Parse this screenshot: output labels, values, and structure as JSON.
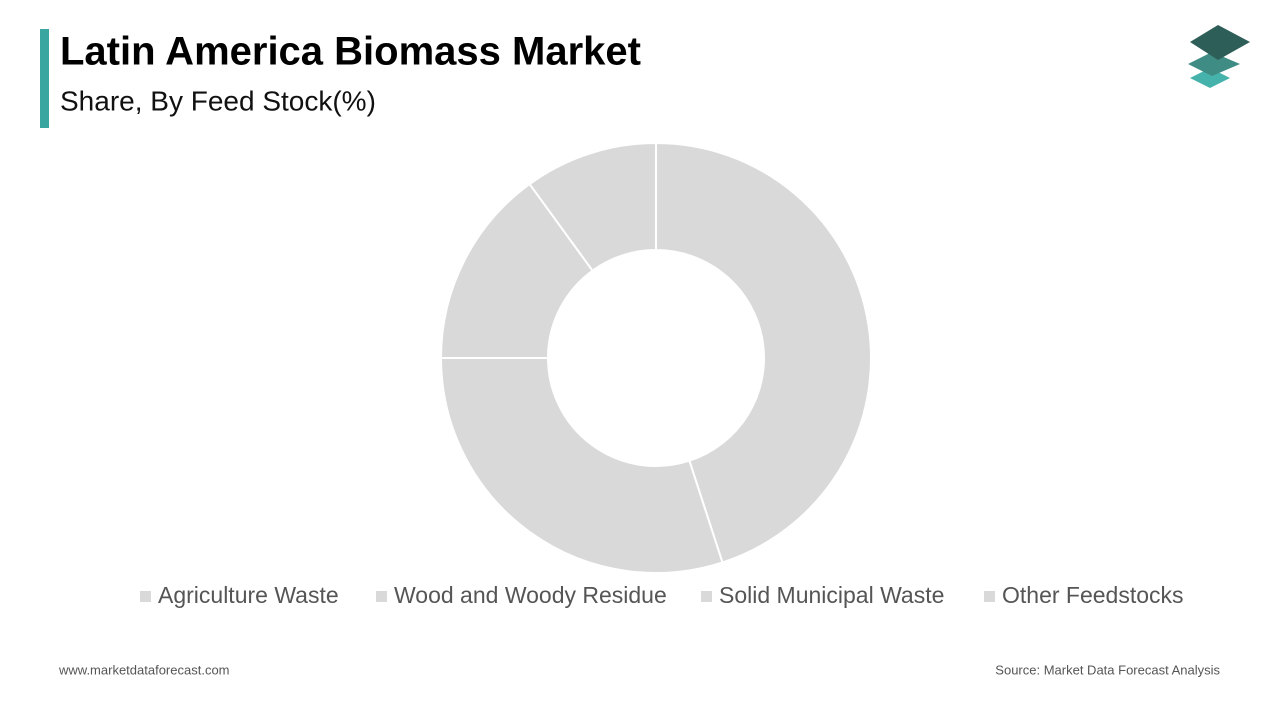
{
  "chart_data": {
    "type": "donut",
    "title": "Latin America Biomass Market",
    "subtitle": "Share, By Feed Stock(%)",
    "categories": [
      "Agriculture Waste",
      "Wood and Woody Residue",
      "Solid Municipal Waste",
      "Other Feedstocks"
    ],
    "values": [
      45,
      30,
      15,
      10
    ],
    "color": "#d9d9d9"
  },
  "footer": {
    "website": "www.marketdataforecast.com",
    "source": "Source: Market Data Forecast Analysis"
  }
}
